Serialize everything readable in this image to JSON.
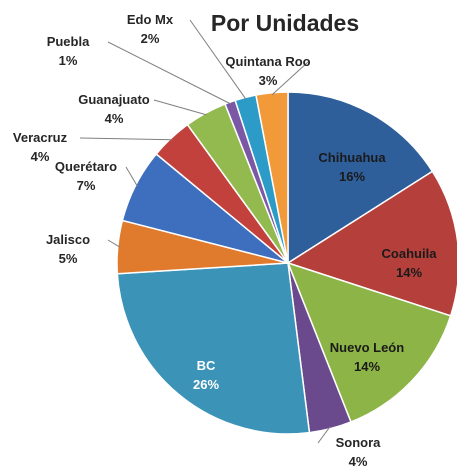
{
  "chart_data": {
    "type": "pie",
    "title": "Por Unidades",
    "slices": [
      {
        "label": "Chihuahua",
        "pct_label": "16%",
        "value": 16,
        "color": "#2e5f9b",
        "placement": "inside"
      },
      {
        "label": "Coahuila",
        "pct_label": "14%",
        "value": 14,
        "color": "#b5403b",
        "placement": "inside"
      },
      {
        "label": "Nuevo León",
        "pct_label": "14%",
        "value": 14,
        "color": "#8db446",
        "placement": "inside"
      },
      {
        "label": "Sonora",
        "pct_label": "4%",
        "value": 4,
        "color": "#6a4a8c",
        "placement": "outside"
      },
      {
        "label": "BC",
        "pct_label": "26%",
        "value": 26,
        "color": "#3b93b7",
        "placement": "inside"
      },
      {
        "label": "Jalisco",
        "pct_label": "5%",
        "value": 5,
        "color": "#e07a2c",
        "placement": "outside"
      },
      {
        "label": "Querétaro",
        "pct_label": "7%",
        "value": 7,
        "color": "#3e6fbf",
        "placement": "outside"
      },
      {
        "label": "Veracruz",
        "pct_label": "4%",
        "value": 4,
        "color": "#c2413d",
        "placement": "outside"
      },
      {
        "label": "Guanajuato",
        "pct_label": "4%",
        "value": 4,
        "color": "#93ba4f",
        "placement": "outside"
      },
      {
        "label": "Puebla",
        "pct_label": "1%",
        "value": 1,
        "color": "#7a58a6",
        "placement": "outside"
      },
      {
        "label": "Edo Mx",
        "pct_label": "2%",
        "value": 2,
        "color": "#2c9bc8",
        "placement": "outside"
      },
      {
        "label": "Quintana Roo",
        "pct_label": "3%",
        "value": 3,
        "color": "#f29a3a",
        "placement": "outside"
      }
    ],
    "start_position": "12 o'clock",
    "direction": "clockwise",
    "legend": "none"
  }
}
